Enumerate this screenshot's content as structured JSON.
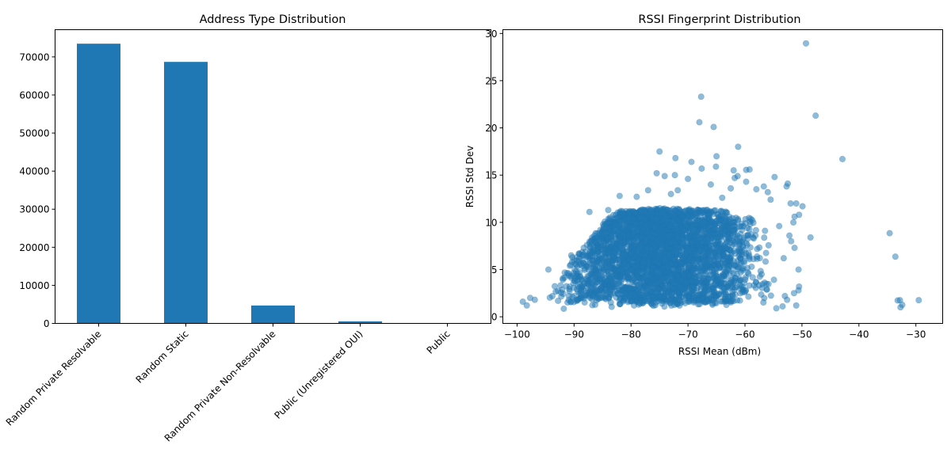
{
  "figure": {
    "colors": {
      "bar": "#1f77b4",
      "point": "#1f77b4",
      "point_alpha": 0.5
    }
  },
  "chart_data": [
    {
      "type": "bar",
      "title": "Address Type Distribution",
      "xlabel": "",
      "ylabel": "",
      "categories": [
        "Random Private Resolvable",
        "Random Static",
        "Random Private Non-Resolvable",
        "Public (Unregistered OUI)",
        "Public"
      ],
      "values": [
        73470,
        68690,
        4700,
        540,
        10
      ],
      "ylim": [
        0,
        77150
      ],
      "yticks": [
        0,
        10000,
        20000,
        30000,
        40000,
        50000,
        60000,
        70000
      ],
      "ytick_labels": [
        "0",
        "10000",
        "20000",
        "30000",
        "40000",
        "50000",
        "60000",
        "70000"
      ],
      "xtick_rotation_deg": 45,
      "grid": false,
      "legend": "none"
    },
    {
      "type": "scatter",
      "title": "RSSI Fingerprint Distribution",
      "xlabel": "RSSI Mean (dBm)",
      "ylabel": "RSSI Std Dev",
      "xlim": [
        -102.5,
        -25.3
      ],
      "ylim": [
        -0.7,
        30.4
      ],
      "xticks": [
        -100,
        -90,
        -80,
        -70,
        -60,
        -50,
        -40,
        -30
      ],
      "xtick_labels": [
        "−100",
        "−90",
        "−80",
        "−70",
        "−60",
        "−50",
        "−40",
        "−30"
      ],
      "yticks": [
        0,
        5,
        10,
        15,
        20,
        25,
        30
      ],
      "ytick_labels": [
        "0",
        "5",
        "10",
        "15",
        "20",
        "25",
        "30"
      ],
      "grid": false,
      "legend": "none",
      "points": [
        {
          "x": -49.3,
          "y": 28.95
        },
        {
          "x": -47.6,
          "y": 21.3
        },
        {
          "x": -42.9,
          "y": 16.7
        },
        {
          "x": -67.7,
          "y": 23.3
        },
        {
          "x": -68.0,
          "y": 20.6
        },
        {
          "x": -65.5,
          "y": 20.1
        },
        {
          "x": -75.0,
          "y": 17.5
        },
        {
          "x": -61.2,
          "y": 18.0
        },
        {
          "x": -72.2,
          "y": 16.8
        },
        {
          "x": -65.0,
          "y": 17.0
        },
        {
          "x": -69.4,
          "y": 16.4
        },
        {
          "x": -67.6,
          "y": 15.7
        },
        {
          "x": -65.1,
          "y": 15.9
        },
        {
          "x": -75.5,
          "y": 15.2
        },
        {
          "x": -74.1,
          "y": 14.9
        },
        {
          "x": -72.3,
          "y": 15.0
        },
        {
          "x": -70.0,
          "y": 14.6
        },
        {
          "x": -62.0,
          "y": 15.5
        },
        {
          "x": -59.2,
          "y": 15.6
        },
        {
          "x": -59.8,
          "y": 15.55
        },
        {
          "x": -61.8,
          "y": 14.7
        },
        {
          "x": -61.3,
          "y": 14.9
        },
        {
          "x": -54.8,
          "y": 14.8
        },
        {
          "x": -59.8,
          "y": 14.3
        },
        {
          "x": -56.7,
          "y": 13.8
        },
        {
          "x": -52.5,
          "y": 14.1
        },
        {
          "x": -52.7,
          "y": 13.8
        },
        {
          "x": -52.0,
          "y": 12.0
        },
        {
          "x": -51.0,
          "y": 12.0
        },
        {
          "x": -51.3,
          "y": 10.6
        },
        {
          "x": -49.9,
          "y": 11.7
        },
        {
          "x": -48.5,
          "y": 8.4
        },
        {
          "x": -50.5,
          "y": 10.8
        },
        {
          "x": -51.5,
          "y": 10.0
        },
        {
          "x": -51.3,
          "y": 7.3
        },
        {
          "x": -50.6,
          "y": 5.0
        },
        {
          "x": -50.5,
          "y": 3.2
        },
        {
          "x": -50.6,
          "y": 2.8
        },
        {
          "x": -51.4,
          "y": 2.5
        },
        {
          "x": -51.0,
          "y": 1.2
        },
        {
          "x": -53.0,
          "y": 2.2
        },
        {
          "x": -54.5,
          "y": 0.9
        },
        {
          "x": -53.4,
          "y": 1.1
        },
        {
          "x": -52.6,
          "y": 1.8
        },
        {
          "x": -53.2,
          "y": 6.2
        },
        {
          "x": -52.2,
          "y": 8.6
        },
        {
          "x": -51.9,
          "y": 8.0
        },
        {
          "x": -54.0,
          "y": 9.6
        },
        {
          "x": -34.6,
          "y": 8.85
        },
        {
          "x": -33.6,
          "y": 6.37
        },
        {
          "x": -33.2,
          "y": 1.73
        },
        {
          "x": -32.8,
          "y": 1.76
        },
        {
          "x": -32.7,
          "y": 1.0
        },
        {
          "x": -32.4,
          "y": 1.26
        },
        {
          "x": -29.5,
          "y": 1.76
        },
        {
          "x": -99.0,
          "y": 1.6
        },
        {
          "x": -98.3,
          "y": 1.2
        },
        {
          "x": -97.7,
          "y": 2.0
        },
        {
          "x": -96.9,
          "y": 1.8
        },
        {
          "x": -91.8,
          "y": 0.85
        },
        {
          "x": -94.5,
          "y": 5.0
        },
        {
          "x": -87.3,
          "y": 11.1
        },
        {
          "x": -90.5,
          "y": 6.5
        },
        {
          "x": -90.3,
          "y": 6.3
        },
        {
          "x": -87.2,
          "y": 7.4
        },
        {
          "x": -88.3,
          "y": 7.3
        },
        {
          "x": -85.5,
          "y": 8.1
        },
        {
          "x": -84.0,
          "y": 11.3
        },
        {
          "x": -82.0,
          "y": 12.8
        },
        {
          "x": -79.0,
          "y": 12.7
        },
        {
          "x": -77.0,
          "y": 13.4
        },
        {
          "x": -73.0,
          "y": 13.0
        },
        {
          "x": -71.8,
          "y": 13.4
        },
        {
          "x": -66.0,
          "y": 14.0
        },
        {
          "x": -64.0,
          "y": 12.6
        },
        {
          "x": -58.0,
          "y": 13.5
        },
        {
          "x": -56.0,
          "y": 13.2
        },
        {
          "x": -62.5,
          "y": 13.6
        },
        {
          "x": -55.5,
          "y": 12.4
        }
      ],
      "dense_cluster": {
        "note": "thousands of overlapping points; envelope in data units",
        "count": 3500,
        "x_range": [
          -96,
          -53
        ],
        "y_floor": 1.0,
        "upper_envelope": [
          {
            "x": -96,
            "y": 3.0
          },
          {
            "x": -92,
            "y": 5.0
          },
          {
            "x": -88,
            "y": 7.5
          },
          {
            "x": -85,
            "y": 10.0
          },
          {
            "x": -82,
            "y": 11.2
          },
          {
            "x": -75,
            "y": 11.5
          },
          {
            "x": -65,
            "y": 11.3
          },
          {
            "x": -60,
            "y": 11.0
          },
          {
            "x": -57,
            "y": 9.5
          },
          {
            "x": -53,
            "y": 7.0
          }
        ]
      }
    }
  ]
}
